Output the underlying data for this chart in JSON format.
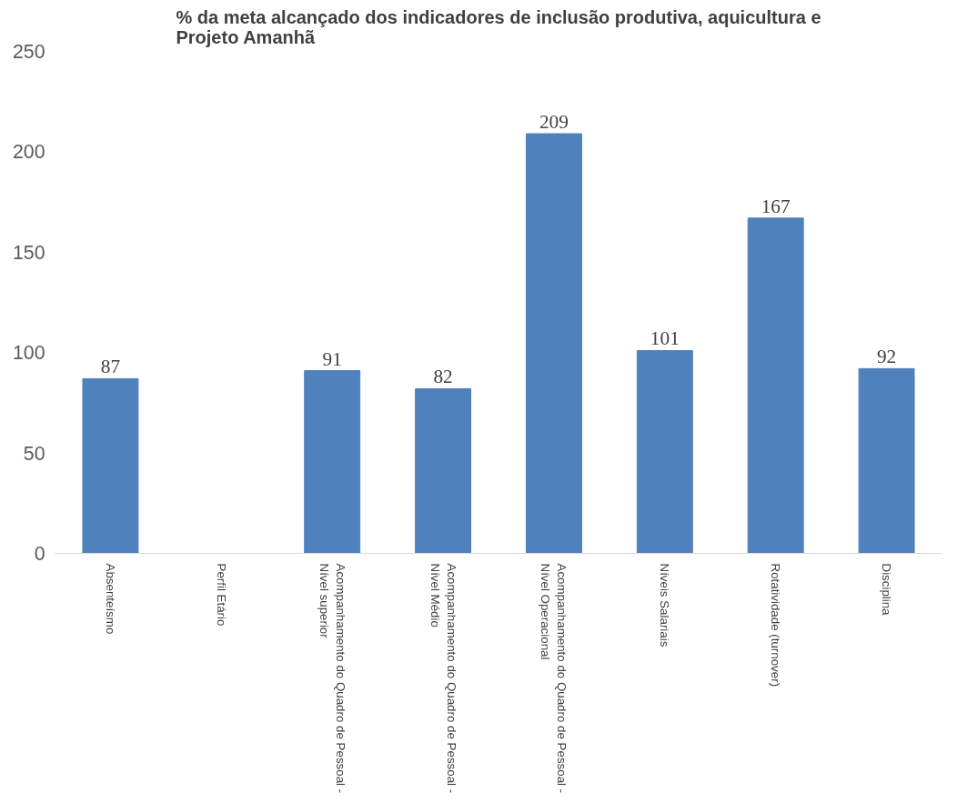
{
  "chart_data": {
    "type": "bar",
    "title": "% da meta alcançado dos indicadores de inclusão produtiva, aquicultura e Projeto Amanhã",
    "categories": [
      "Absenteísmo",
      "Perfil Etário",
      "Acompanhamento do Quadro de Pessoal - Nível superior",
      "Acompanhamento do Quadro de Pessoal - Nível Médio",
      "Acompanhamento do Quadro de Pessoal - Nível Operacional",
      "Níveis Salariais",
      "Rotatividade (turnover)",
      "Disciplina"
    ],
    "values": [
      87,
      null,
      91,
      82,
      209,
      101,
      167,
      92
    ],
    "color": "#4f81bd",
    "ylim": [
      0,
      250
    ],
    "yticks": [
      0,
      50,
      100,
      150,
      200,
      250
    ],
    "grid": false,
    "data_labels": true
  }
}
